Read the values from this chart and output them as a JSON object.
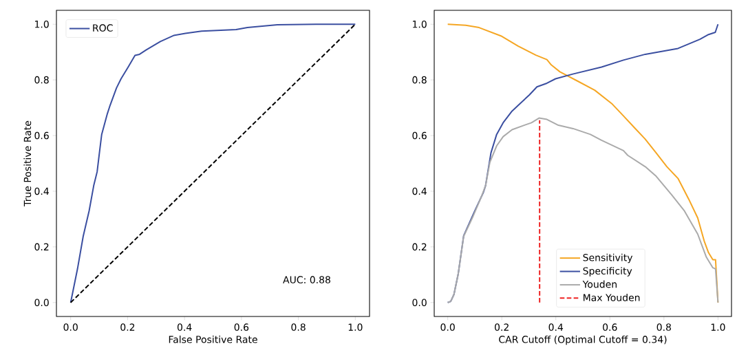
{
  "chart_data": [
    {
      "type": "line",
      "xlabel": "False Positive Rate",
      "ylabel": "True Positive Rate",
      "xlim": [
        -0.05,
        1.05
      ],
      "ylim": [
        -0.05,
        1.05
      ],
      "xticks": [
        {
          "value": 0,
          "label": "0.0"
        },
        {
          "value": 0.2,
          "label": "0.2"
        },
        {
          "value": 0.4,
          "label": "0.4"
        },
        {
          "value": 0.6,
          "label": "0.6"
        },
        {
          "value": 0.8,
          "label": "0.8"
        },
        {
          "value": 1,
          "label": "1.0"
        }
      ],
      "yticks": [
        {
          "value": 0,
          "label": "0.0"
        },
        {
          "value": 0.2,
          "label": "0.2"
        },
        {
          "value": 0.4,
          "label": "0.4"
        },
        {
          "value": 0.6,
          "label": "0.6"
        },
        {
          "value": 0.8,
          "label": "0.8"
        },
        {
          "value": 1,
          "label": "1.0"
        }
      ],
      "legend": "top left",
      "annotations": [
        "AUC: 0.88"
      ],
      "series": [
        {
          "name": "ROC",
          "color": "#3a4ea0",
          "x": [
            0,
            0.024,
            0.044,
            0.065,
            0.081,
            0.093,
            0.101,
            0.109,
            0.129,
            0.137,
            0.161,
            0.177,
            0.202,
            0.226,
            0.242,
            0.266,
            0.315,
            0.363,
            0.403,
            0.46,
            0.581,
            0.621,
            0.726,
            0.863,
            1
          ],
          "values": [
            0,
            0.121,
            0.238,
            0.33,
            0.42,
            0.47,
            0.538,
            0.604,
            0.679,
            0.704,
            0.771,
            0.804,
            0.846,
            0.888,
            0.892,
            0.908,
            0.938,
            0.96,
            0.967,
            0.975,
            0.981,
            0.988,
            0.998,
            1,
            1
          ]
        },
        {
          "color": "#000000",
          "line_style": "dashed",
          "x": [
            0,
            1
          ],
          "values": [
            0,
            1
          ]
        }
      ]
    },
    {
      "type": "line",
      "xlabel": "CAR Cutoff (Optimal Cutoff = 0.34)",
      "xlim": [
        -0.05,
        1.05
      ],
      "ylim": [
        -0.05,
        1.05
      ],
      "xticks": [
        {
          "value": 0,
          "label": "0.0"
        },
        {
          "value": 0.2,
          "label": "0.2"
        },
        {
          "value": 0.4,
          "label": "0.4"
        },
        {
          "value": 0.6,
          "label": "0.6"
        },
        {
          "value": 0.8,
          "label": "0.8"
        },
        {
          "value": 1,
          "label": "1.0"
        }
      ],
      "yticks": [
        {
          "value": 0,
          "label": "0.0"
        },
        {
          "value": 0.2,
          "label": "0.2"
        },
        {
          "value": 0.4,
          "label": "0.4"
        },
        {
          "value": 0.6,
          "label": "0.6"
        },
        {
          "value": 0.8,
          "label": "0.8"
        },
        {
          "value": 1,
          "label": "1.0"
        }
      ],
      "legend": "bottom",
      "series": [
        {
          "name": "Sensitivity",
          "color": "#f5a623",
          "x": [
            0,
            0.067,
            0.116,
            0.197,
            0.261,
            0.326,
            0.367,
            0.383,
            0.415,
            0.48,
            0.544,
            0.609,
            0.65,
            0.69,
            0.73,
            0.771,
            0.811,
            0.852,
            0.892,
            0.925,
            0.949,
            0.965,
            0.981,
            0.991,
            1
          ],
          "values": [
            1,
            0.996,
            0.988,
            0.958,
            0.921,
            0.889,
            0.873,
            0.854,
            0.829,
            0.796,
            0.763,
            0.713,
            0.671,
            0.629,
            0.588,
            0.538,
            0.488,
            0.446,
            0.371,
            0.304,
            0.221,
            0.179,
            0.154,
            0.154,
            0
          ]
        },
        {
          "name": "Specificity",
          "color": "#3a4ea0",
          "x": [
            0,
            0.011,
            0.023,
            0.039,
            0.059,
            0.1,
            0.132,
            0.14,
            0.16,
            0.181,
            0.205,
            0.238,
            0.302,
            0.33,
            0.367,
            0.399,
            0.463,
            0.569,
            0.65,
            0.731,
            0.852,
            0.933,
            0.965,
            0.99,
            1
          ],
          "values": [
            0,
            0.004,
            0.029,
            0.104,
            0.24,
            0.329,
            0.396,
            0.42,
            0.538,
            0.604,
            0.646,
            0.688,
            0.746,
            0.775,
            0.788,
            0.804,
            0.821,
            0.846,
            0.871,
            0.892,
            0.913,
            0.946,
            0.963,
            0.971,
            1
          ]
        },
        {
          "name": "Youden",
          "color": "#aaaaaa",
          "x": [
            0,
            0.011,
            0.023,
            0.039,
            0.059,
            0.091,
            0.124,
            0.14,
            0.156,
            0.181,
            0.205,
            0.238,
            0.286,
            0.31,
            0.338,
            0.367,
            0.407,
            0.464,
            0.528,
            0.569,
            0.65,
            0.666,
            0.731,
            0.771,
            0.828,
            0.876,
            0.925,
            0.957,
            0.981,
            0.991,
            1
          ],
          "values": [
            0,
            0.004,
            0.029,
            0.104,
            0.238,
            0.304,
            0.379,
            0.42,
            0.504,
            0.563,
            0.596,
            0.621,
            0.638,
            0.646,
            0.663,
            0.658,
            0.638,
            0.625,
            0.604,
            0.583,
            0.546,
            0.529,
            0.488,
            0.454,
            0.388,
            0.329,
            0.246,
            0.163,
            0.125,
            0.121,
            0
          ]
        },
        {
          "name": "Max Youden",
          "color": "#ee2222",
          "line_style": "dashed",
          "x": [
            0.34,
            0.34
          ],
          "values": [
            0,
            0.655
          ]
        }
      ]
    }
  ]
}
